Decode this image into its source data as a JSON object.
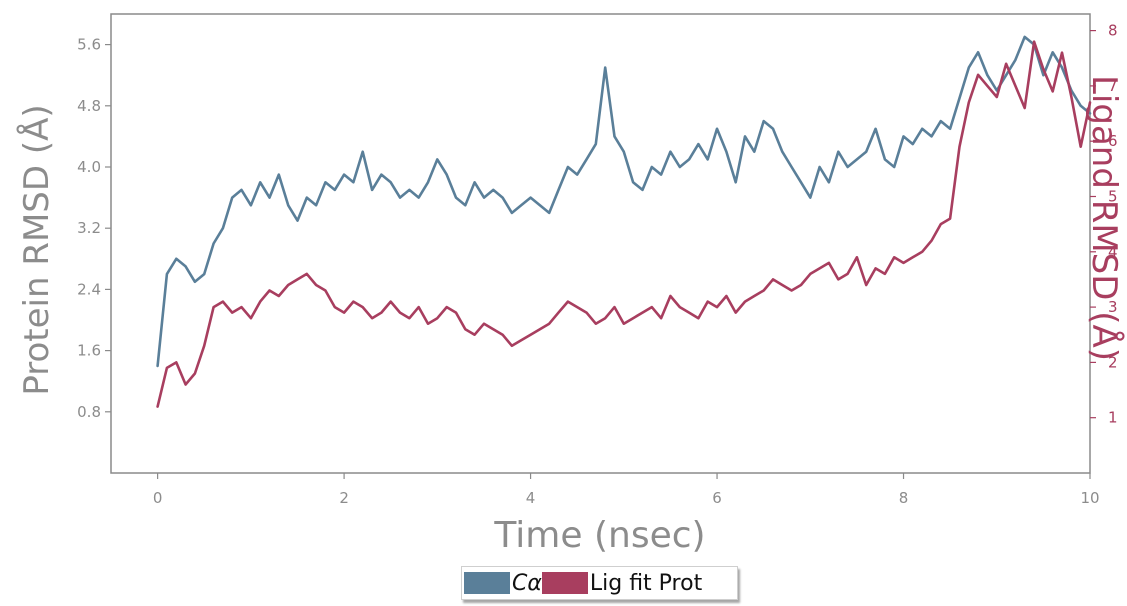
{
  "chart_data": {
    "type": "line",
    "xlabel": "Time (nsec)",
    "ylabel_left": "Protein RMSD (Å)",
    "ylabel_right": "Ligand RMSD (Å)",
    "xlim": [
      -0.5,
      10
    ],
    "ylim_left": [
      0,
      6.0
    ],
    "ylim_right": [
      0,
      8.3
    ],
    "x_ticks": [
      "0",
      "2",
      "4",
      "6",
      "8",
      "10"
    ],
    "y_ticks_left": [
      "0.8",
      "1.6",
      "2.4",
      "3.2",
      "4.0",
      "4.8",
      "5.6"
    ],
    "y_ticks_right": [
      "1",
      "2",
      "3",
      "4",
      "5",
      "6",
      "7",
      "8"
    ],
    "legend": {
      "placement": "bottom-center"
    },
    "grid": false,
    "series": [
      {
        "name": "Cα",
        "axis": "left",
        "color": "#5a7f99",
        "x": [
          0.0,
          0.1,
          0.2,
          0.3,
          0.4,
          0.5,
          0.6,
          0.7,
          0.8,
          0.9,
          1.0,
          1.1,
          1.2,
          1.3,
          1.4,
          1.5,
          1.6,
          1.7,
          1.8,
          1.9,
          2.0,
          2.1,
          2.2,
          2.3,
          2.4,
          2.5,
          2.6,
          2.7,
          2.8,
          2.9,
          3.0,
          3.1,
          3.2,
          3.3,
          3.4,
          3.5,
          3.6,
          3.7,
          3.8,
          3.9,
          4.0,
          4.1,
          4.2,
          4.3,
          4.4,
          4.5,
          4.6,
          4.7,
          4.8,
          4.9,
          5.0,
          5.1,
          5.2,
          5.3,
          5.4,
          5.5,
          5.6,
          5.7,
          5.8,
          5.9,
          6.0,
          6.1,
          6.2,
          6.3,
          6.4,
          6.5,
          6.6,
          6.7,
          6.8,
          6.9,
          7.0,
          7.1,
          7.2,
          7.3,
          7.4,
          7.5,
          7.6,
          7.7,
          7.8,
          7.9,
          8.0,
          8.1,
          8.2,
          8.3,
          8.4,
          8.5,
          8.6,
          8.7,
          8.8,
          8.9,
          9.0,
          9.1,
          9.2,
          9.3,
          9.4,
          9.5,
          9.6,
          9.7,
          9.8,
          9.9,
          10.0
        ],
        "values": [
          1.4,
          2.6,
          2.8,
          2.7,
          2.5,
          2.6,
          3.0,
          3.2,
          3.6,
          3.7,
          3.5,
          3.8,
          3.6,
          3.9,
          3.5,
          3.3,
          3.6,
          3.5,
          3.8,
          3.7,
          3.9,
          3.8,
          4.2,
          3.7,
          3.9,
          3.8,
          3.6,
          3.7,
          3.6,
          3.8,
          4.1,
          3.9,
          3.6,
          3.5,
          3.8,
          3.6,
          3.7,
          3.6,
          3.4,
          3.5,
          3.6,
          3.5,
          3.4,
          3.7,
          4.0,
          3.9,
          4.1,
          4.3,
          5.3,
          4.4,
          4.2,
          3.8,
          3.7,
          4.0,
          3.9,
          4.2,
          4.0,
          4.1,
          4.3,
          4.1,
          4.5,
          4.2,
          3.8,
          4.4,
          4.2,
          4.6,
          4.5,
          4.2,
          4.0,
          3.8,
          3.6,
          4.0,
          3.8,
          4.2,
          4.0,
          4.1,
          4.2,
          4.5,
          4.1,
          4.0,
          4.4,
          4.3,
          4.5,
          4.4,
          4.6,
          4.5,
          4.9,
          5.3,
          5.5,
          5.2,
          5.0,
          5.2,
          5.4,
          5.7,
          5.6,
          5.2,
          5.5,
          5.3,
          5.0,
          4.8,
          4.7
        ]
      },
      {
        "name": "Lig fit Prot",
        "axis": "right",
        "color": "#a83e5f",
        "x": [
          0.0,
          0.1,
          0.2,
          0.3,
          0.4,
          0.5,
          0.6,
          0.7,
          0.8,
          0.9,
          1.0,
          1.1,
          1.2,
          1.3,
          1.4,
          1.5,
          1.6,
          1.7,
          1.8,
          1.9,
          2.0,
          2.1,
          2.2,
          2.3,
          2.4,
          2.5,
          2.6,
          2.7,
          2.8,
          2.9,
          3.0,
          3.1,
          3.2,
          3.3,
          3.4,
          3.5,
          3.6,
          3.7,
          3.8,
          3.9,
          4.0,
          4.1,
          4.2,
          4.3,
          4.4,
          4.5,
          4.6,
          4.7,
          4.8,
          4.9,
          5.0,
          5.1,
          5.2,
          5.3,
          5.4,
          5.5,
          5.6,
          5.7,
          5.8,
          5.9,
          6.0,
          6.1,
          6.2,
          6.3,
          6.4,
          6.5,
          6.6,
          6.7,
          6.8,
          6.9,
          7.0,
          7.1,
          7.2,
          7.3,
          7.4,
          7.5,
          7.6,
          7.7,
          7.8,
          7.9,
          8.0,
          8.1,
          8.2,
          8.3,
          8.4,
          8.5,
          8.6,
          8.7,
          8.8,
          8.9,
          9.0,
          9.1,
          9.2,
          9.3,
          9.4,
          9.5,
          9.6,
          9.7,
          9.8,
          9.9,
          10.0
        ],
        "values": [
          1.2,
          1.9,
          2.0,
          1.6,
          1.8,
          2.3,
          3.0,
          3.1,
          2.9,
          3.0,
          2.8,
          3.1,
          3.3,
          3.2,
          3.4,
          3.5,
          3.6,
          3.4,
          3.3,
          3.0,
          2.9,
          3.1,
          3.0,
          2.8,
          2.9,
          3.1,
          2.9,
          2.8,
          3.0,
          2.7,
          2.8,
          3.0,
          2.9,
          2.6,
          2.5,
          2.7,
          2.6,
          2.5,
          2.3,
          2.4,
          2.5,
          2.6,
          2.7,
          2.9,
          3.1,
          3.0,
          2.9,
          2.7,
          2.8,
          3.0,
          2.7,
          2.8,
          2.9,
          3.0,
          2.8,
          3.2,
          3.0,
          2.9,
          2.8,
          3.1,
          3.0,
          3.2,
          2.9,
          3.1,
          3.2,
          3.3,
          3.5,
          3.4,
          3.3,
          3.4,
          3.6,
          3.7,
          3.8,
          3.5,
          3.6,
          3.9,
          3.4,
          3.7,
          3.6,
          3.9,
          3.8,
          3.9,
          4.0,
          4.2,
          4.5,
          4.6,
          5.9,
          6.7,
          7.2,
          7.0,
          6.8,
          7.4,
          7.0,
          6.6,
          7.8,
          7.3,
          6.9,
          7.6,
          6.8,
          5.9,
          6.7
        ]
      }
    ]
  }
}
